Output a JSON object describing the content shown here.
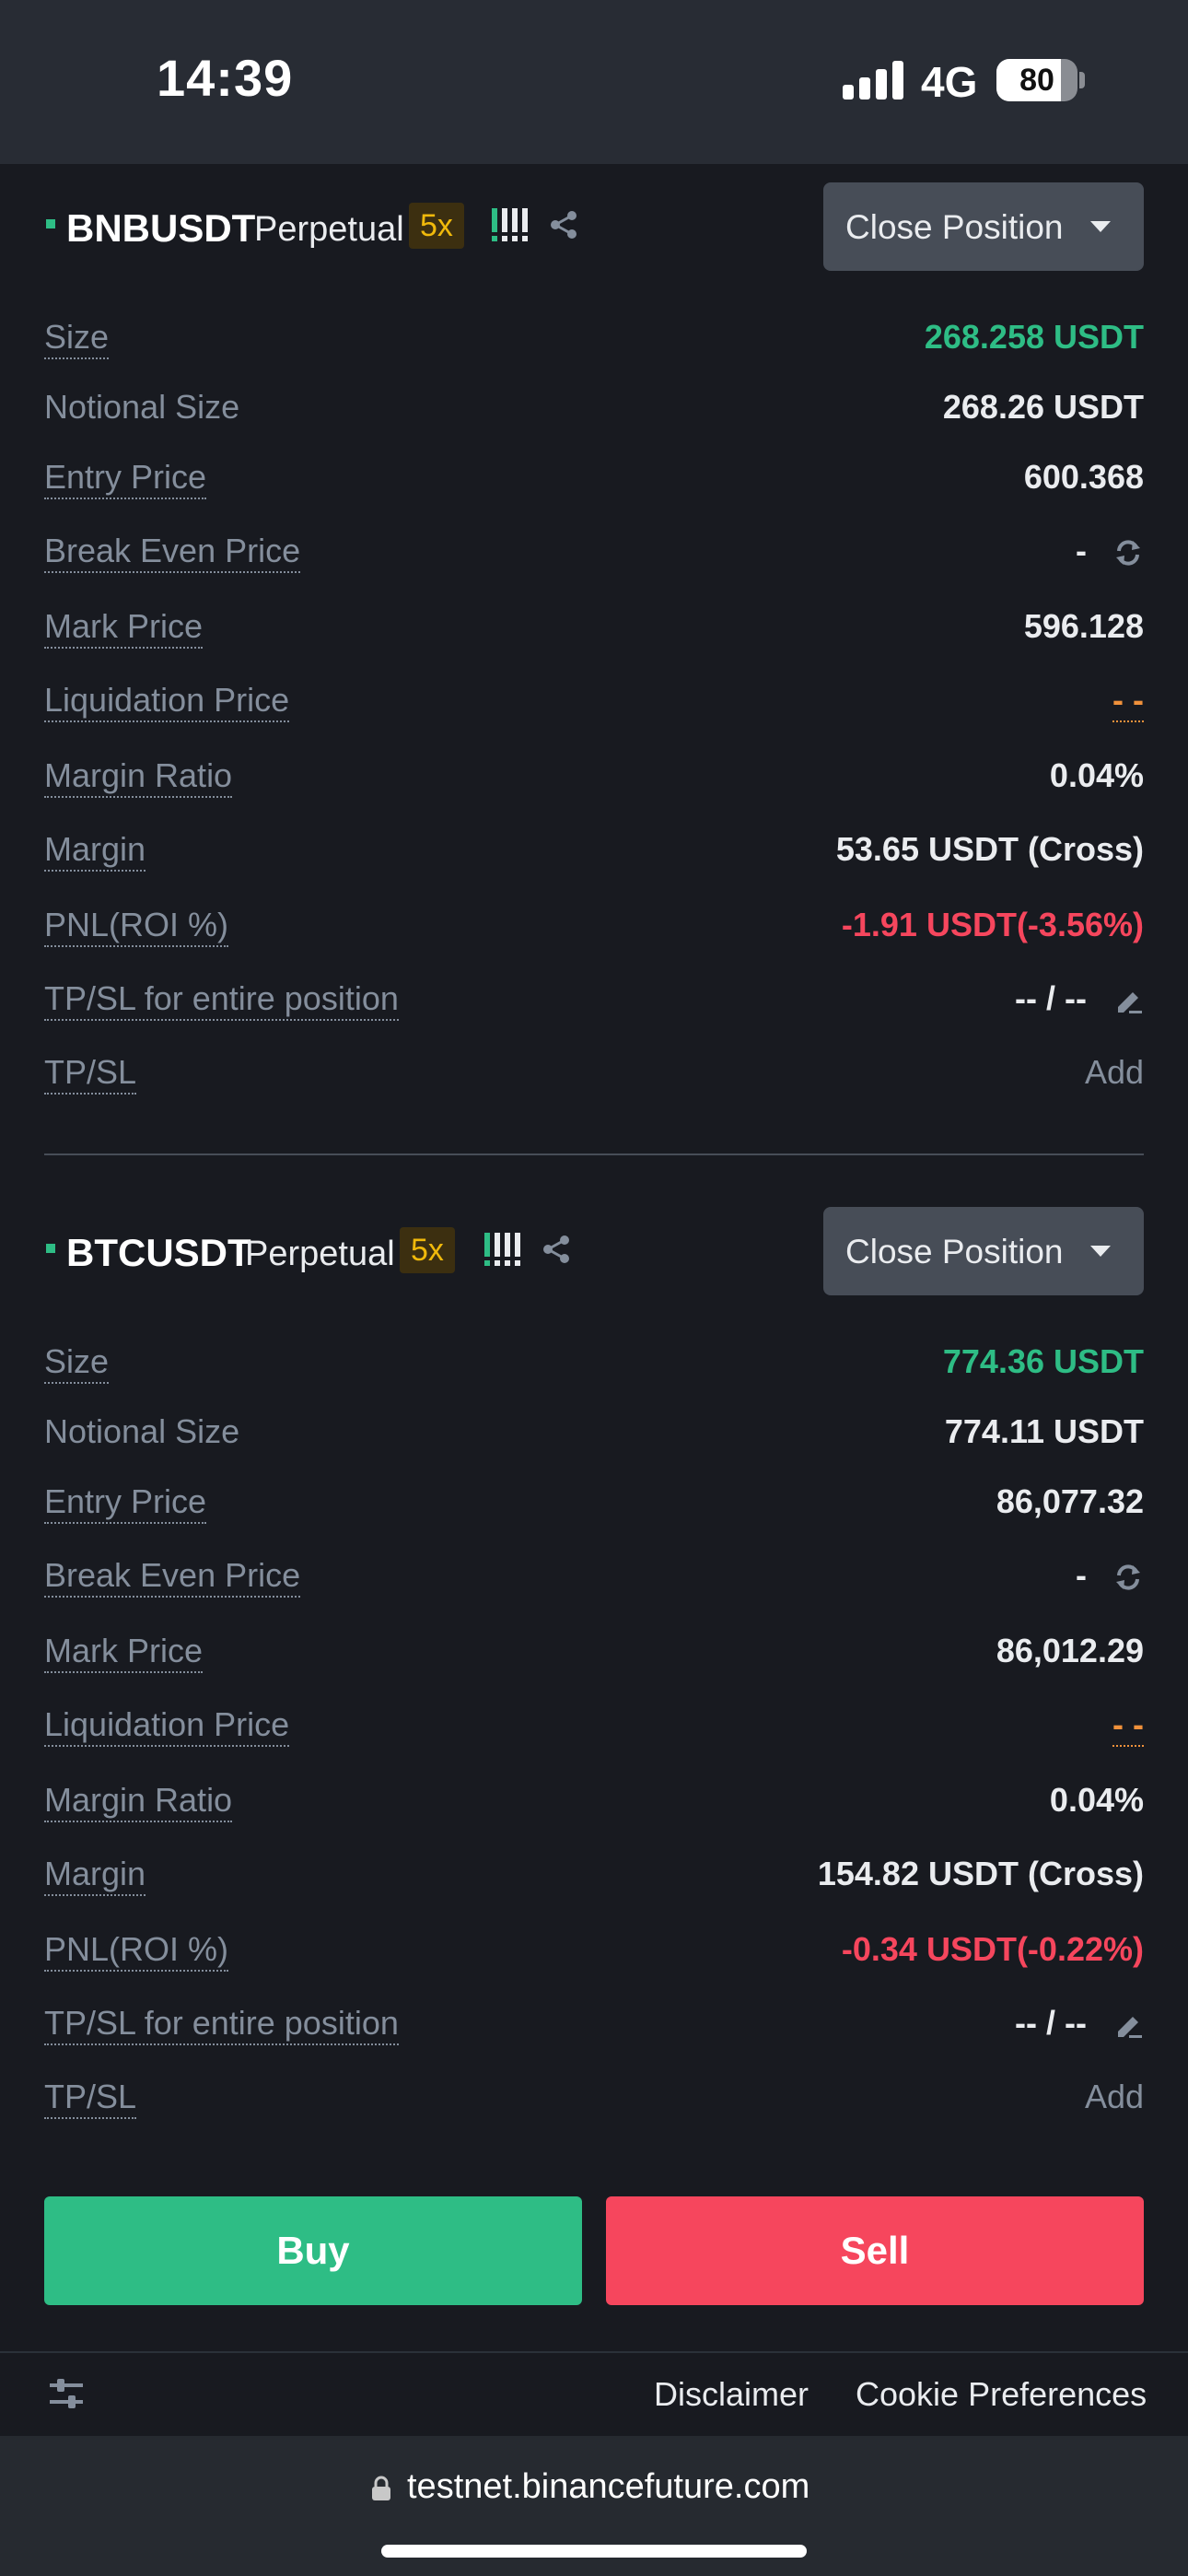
{
  "status_bar": {
    "time": "14:39",
    "network": "4G",
    "battery": "80",
    "battery_level": 0.8
  },
  "positions": [
    {
      "symbol": "BNBUSDT",
      "contract_type": "Perpetual",
      "leverage": "5x",
      "close_button": "Close Position",
      "rows": {
        "size": {
          "label": "Size",
          "value": "268.258 USDT"
        },
        "notional": {
          "label": "Notional Size",
          "value": "268.26 USDT"
        },
        "entry": {
          "label": "Entry Price",
          "value": "600.368"
        },
        "break_even": {
          "label": "Break Even Price",
          "value": "-"
        },
        "mark": {
          "label": "Mark Price",
          "value": "596.128"
        },
        "liquidation": {
          "label": "Liquidation Price",
          "value": "- -"
        },
        "margin_ratio": {
          "label": "Margin Ratio",
          "value": "0.04%"
        },
        "margin": {
          "label": "Margin",
          "value": "53.65 USDT (Cross)"
        },
        "pnl": {
          "label": "PNL(ROI %)",
          "value": "-1.91 USDT(-3.56%)"
        },
        "tpsl_entire": {
          "label": "TP/SL for entire position",
          "value": "-- / --"
        },
        "tpsl": {
          "label": "TP/SL",
          "value": "Add"
        }
      }
    },
    {
      "symbol": "BTCUSDT",
      "contract_type": "Perpetual",
      "leverage": "5x",
      "close_button": "Close Position",
      "rows": {
        "size": {
          "label": "Size",
          "value": "774.36 USDT"
        },
        "notional": {
          "label": "Notional Size",
          "value": "774.11 USDT"
        },
        "entry": {
          "label": "Entry Price",
          "value": "86,077.32"
        },
        "break_even": {
          "label": "Break Even Price",
          "value": "-"
        },
        "mark": {
          "label": "Mark Price",
          "value": "86,012.29"
        },
        "liquidation": {
          "label": "Liquidation Price",
          "value": "- -"
        },
        "margin_ratio": {
          "label": "Margin Ratio",
          "value": "0.04%"
        },
        "margin": {
          "label": "Margin",
          "value": "154.82 USDT (Cross)"
        },
        "pnl": {
          "label": "PNL(ROI %)",
          "value": "-0.34 USDT(-0.22%)"
        },
        "tpsl_entire": {
          "label": "TP/SL for entire position",
          "value": "-- / --"
        },
        "tpsl": {
          "label": "TP/SL",
          "value": "Add"
        }
      }
    }
  ],
  "actions": {
    "buy": "Buy",
    "sell": "Sell"
  },
  "footer": {
    "disclaimer": "Disclaimer",
    "cookie": "Cookie Preferences"
  },
  "browser": {
    "url": "testnet.binancefuture.com"
  },
  "colors": {
    "background": "#181a20",
    "buy": "#2ebd85",
    "sell": "#f6465d",
    "leverage": "#f0b90b",
    "liquidation": "#f0913b"
  }
}
